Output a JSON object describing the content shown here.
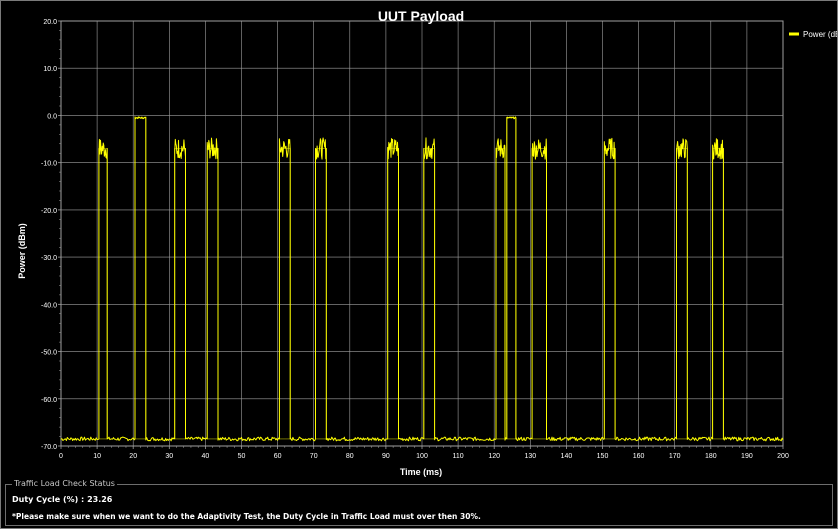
{
  "chart_data": {
    "type": "line",
    "title": "UUT Payload",
    "xlabel": "Time (ms)",
    "ylabel": "Power (dBm)",
    "xlim": [
      0,
      200
    ],
    "ylim": [
      -70,
      20
    ],
    "x_ticks": [
      0,
      10,
      20,
      30,
      40,
      50,
      60,
      70,
      80,
      90,
      100,
      110,
      120,
      130,
      140,
      150,
      160,
      170,
      180,
      190,
      200
    ],
    "y_ticks": [
      20,
      10,
      0,
      -10,
      -20,
      -30,
      -40,
      -50,
      -60,
      -70
    ],
    "y_tick_labels": [
      "20.0",
      "10.0",
      "0.0",
      "-10.0",
      "-20.0",
      "-30.0",
      "-40.0",
      "-50.0",
      "-60.0",
      "-70.0"
    ],
    "grid": true,
    "legend_position": "top-right",
    "noise_floor_dbm": -68.5,
    "series": [
      {
        "name": "Power (dBm)",
        "color": "#ffff00",
        "bursts": [
          {
            "start_ms": 10.5,
            "end_ms": 12.8,
            "level_dbm": -7
          },
          {
            "start_ms": 20.5,
            "end_ms": 23.5,
            "level_dbm": -0.5
          },
          {
            "start_ms": 31.5,
            "end_ms": 34.5,
            "level_dbm": -7
          },
          {
            "start_ms": 40.5,
            "end_ms": 43.5,
            "level_dbm": -7
          },
          {
            "start_ms": 60.5,
            "end_ms": 63.5,
            "level_dbm": -7
          },
          {
            "start_ms": 70.5,
            "end_ms": 73.5,
            "level_dbm": -7
          },
          {
            "start_ms": 90.5,
            "end_ms": 93.5,
            "level_dbm": -7
          },
          {
            "start_ms": 100.5,
            "end_ms": 103.5,
            "level_dbm": -7
          },
          {
            "start_ms": 120.5,
            "end_ms": 123.0,
            "level_dbm": -7
          },
          {
            "start_ms": 123.5,
            "end_ms": 126.0,
            "level_dbm": -0.5
          },
          {
            "start_ms": 130.5,
            "end_ms": 134.5,
            "level_dbm": -7
          },
          {
            "start_ms": 150.5,
            "end_ms": 153.5,
            "level_dbm": -7
          },
          {
            "start_ms": 170.5,
            "end_ms": 173.5,
            "level_dbm": -7
          },
          {
            "start_ms": 180.5,
            "end_ms": 183.5,
            "level_dbm": -7
          }
        ]
      }
    ]
  },
  "status": {
    "panel_title": "Traffic Load Check Status",
    "duty_cycle_label": "Duty Cycle (%) :",
    "duty_cycle_value": "23.26",
    "note": "*Please make sure when we want to do the Adaptivity Test, the Duty Cycle in Traffic Load must over then 30%."
  },
  "colors": {
    "background": "#000000",
    "grid": "#a0a0a0",
    "trace": "#ffff00",
    "text": "#ffffff"
  }
}
